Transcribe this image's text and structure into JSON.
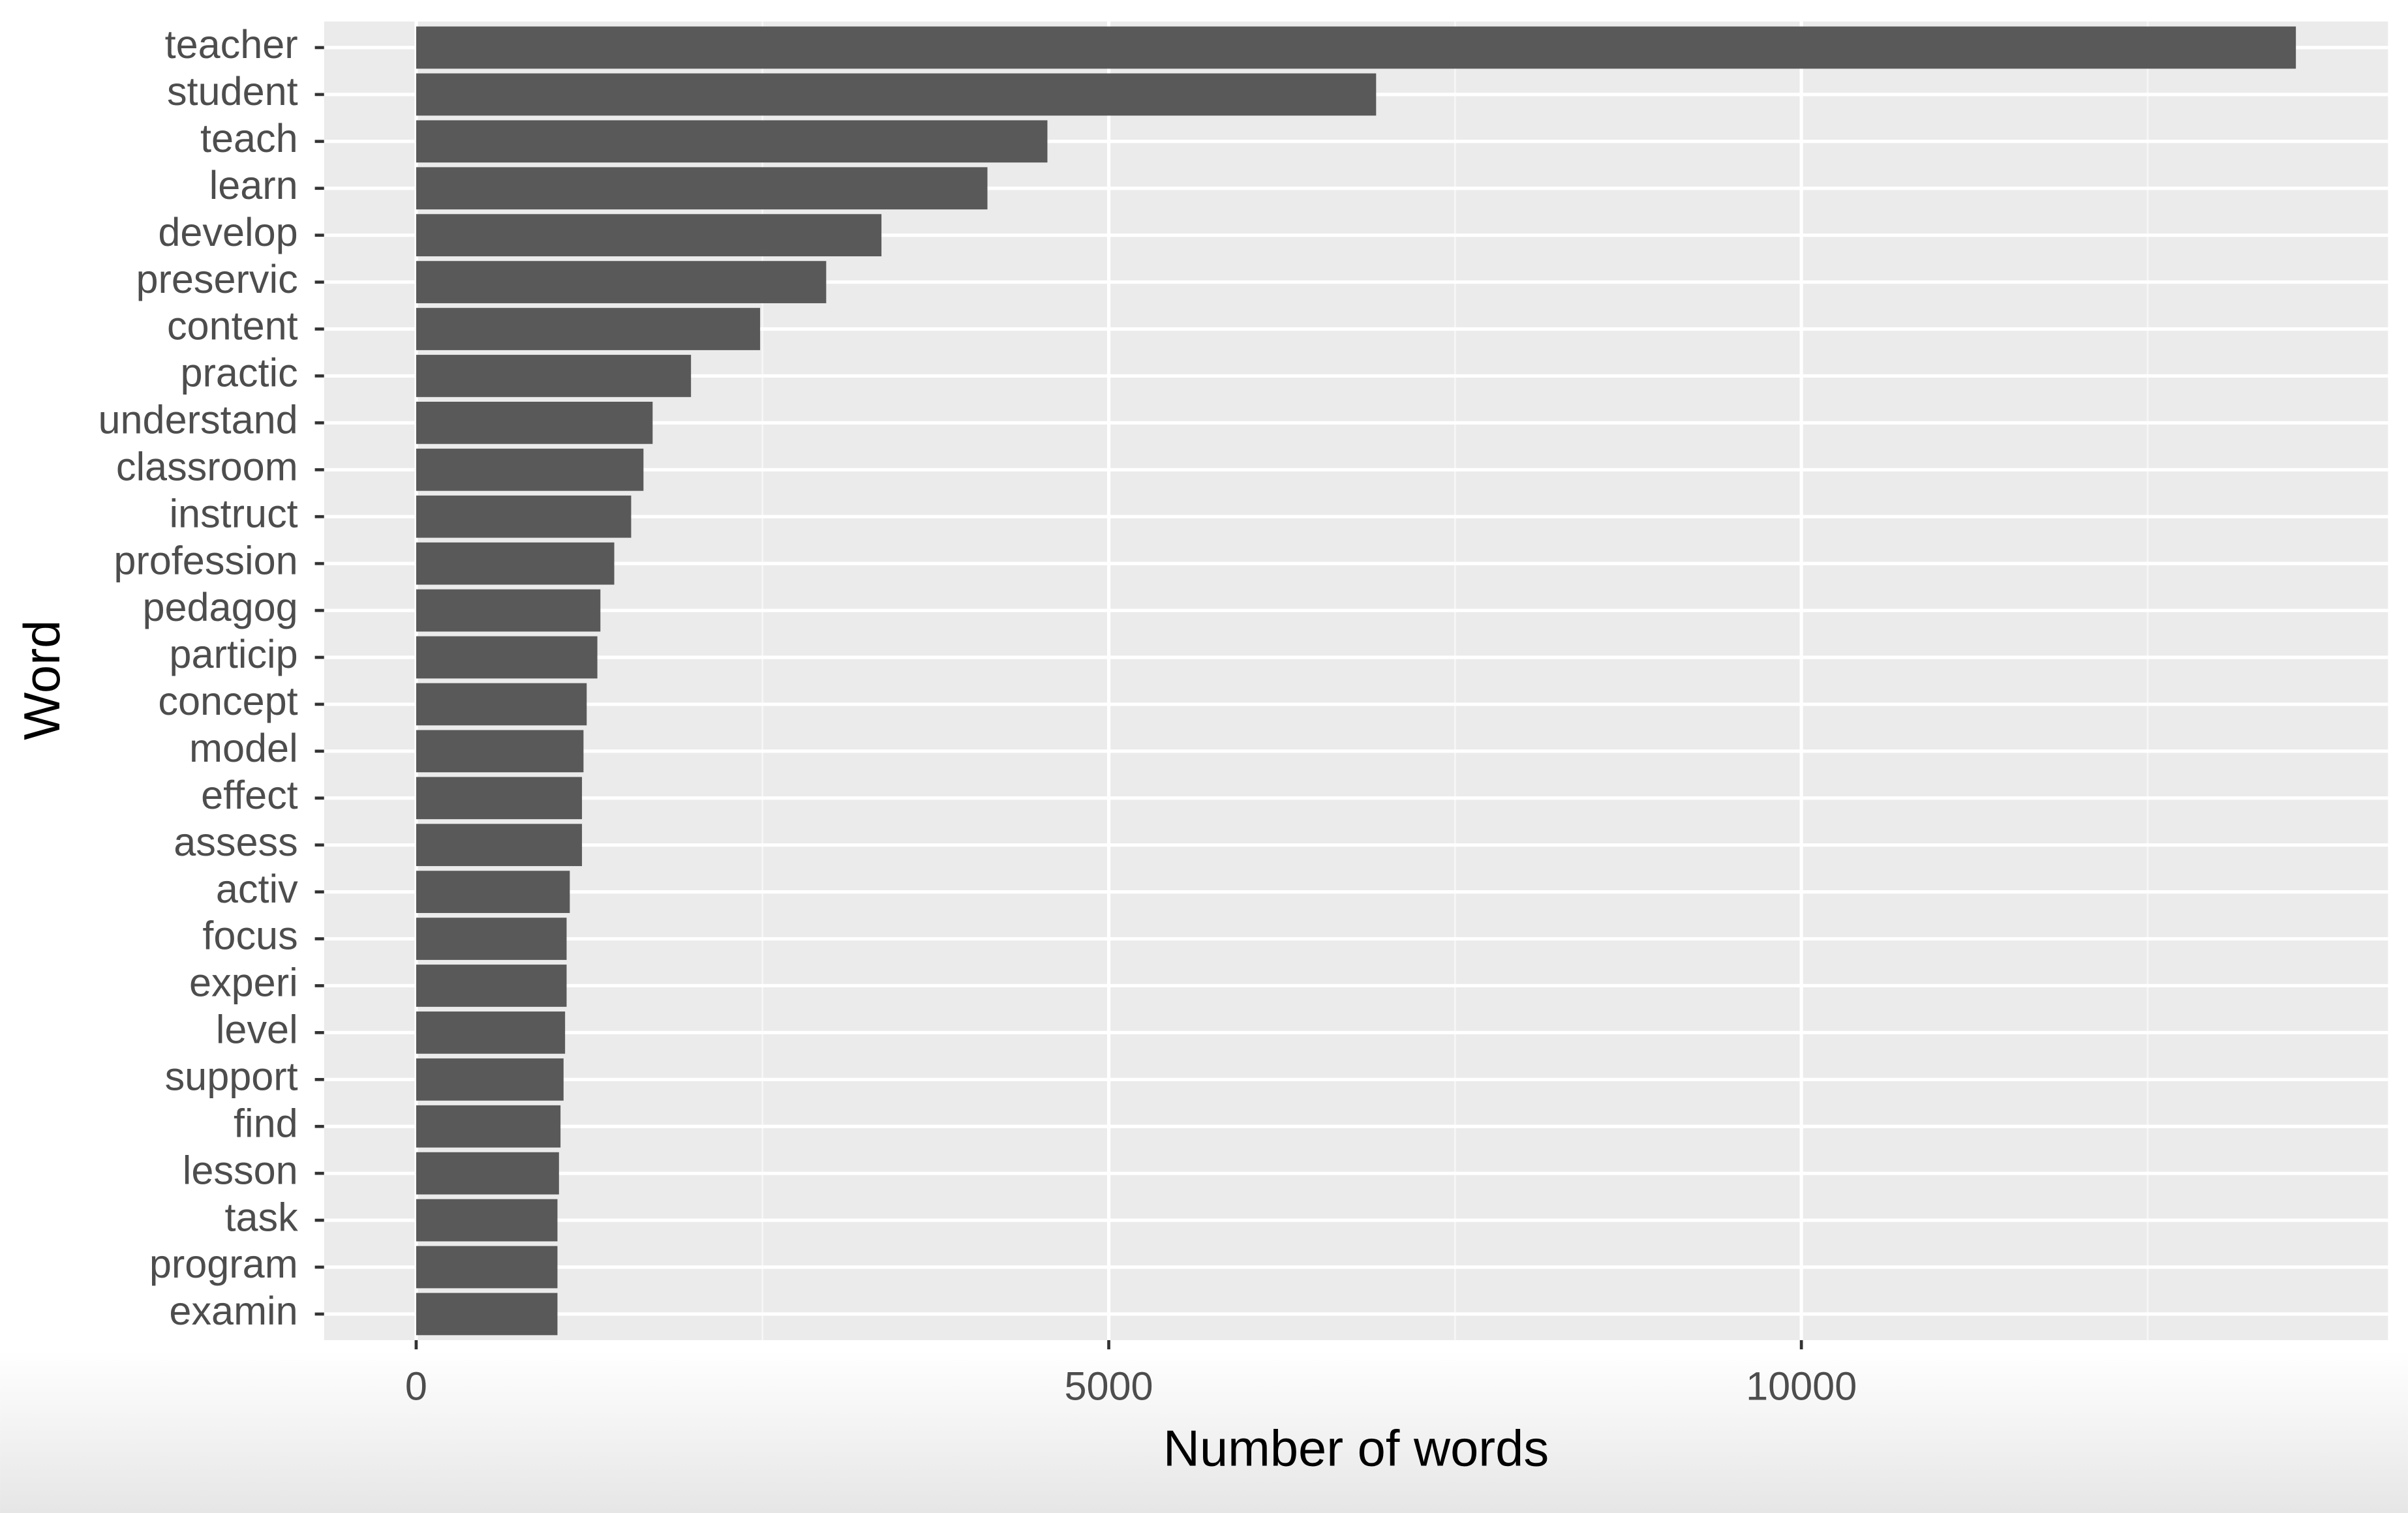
{
  "chart_data": {
    "type": "bar",
    "orientation": "horizontal",
    "x_label": "Number of words",
    "y_label": "Word",
    "categories": [
      "teacher",
      "student",
      "teach",
      "learn",
      "develop",
      "preservic",
      "content",
      "practic",
      "understand",
      "classroom",
      "instruct",
      "profession",
      "pedagog",
      "particip",
      "concept",
      "model",
      "effect",
      "assess",
      "activ",
      "focus",
      "experi",
      "level",
      "support",
      "find",
      "lesson",
      "task",
      "program",
      "examin"
    ],
    "values": [
      13570,
      6930,
      4557,
      4124,
      3359,
      2960,
      2483,
      1984,
      1707,
      1641,
      1552,
      1430,
      1330,
      1308,
      1231,
      1208,
      1197,
      1197,
      1109,
      1086,
      1086,
      1075,
      1064,
      1042,
      1031,
      1020,
      1020,
      1020
    ],
    "color": "#595959",
    "xlim": [
      -665,
      14235
    ],
    "xticks": [
      0,
      5000,
      10000
    ],
    "grid": true
  }
}
